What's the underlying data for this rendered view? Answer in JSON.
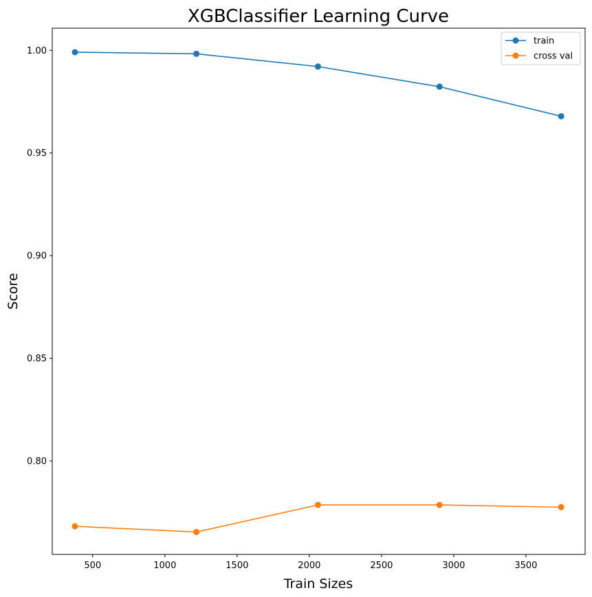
{
  "chart_data": {
    "type": "line",
    "title": "XGBClassifier Learning Curve",
    "xlabel": "Train Sizes",
    "ylabel": "Score",
    "xlim": [
      220,
      3910
    ],
    "ylim": [
      0.7545,
      1.0108
    ],
    "x_ticks": [
      500,
      1000,
      1500,
      2000,
      2500,
      3000,
      3500
    ],
    "x_tick_labels": [
      "500",
      "1000",
      "1500",
      "2000",
      "2500",
      "3000",
      "3500"
    ],
    "y_ticks": [
      0.8,
      0.85,
      0.9,
      0.95,
      1.0
    ],
    "y_tick_labels": [
      "0.80",
      "0.85",
      "0.90",
      "0.95",
      "1.00"
    ],
    "grid": false,
    "legend_position": "top-right",
    "x": [
      377,
      1218,
      2060,
      2902,
      3744
    ],
    "series": [
      {
        "name": "train",
        "color": "#1f77b4",
        "marker": "circle",
        "values": [
          0.9991,
          0.9983,
          0.9921,
          0.9823,
          0.9679
        ]
      },
      {
        "name": "cross val",
        "color": "#ff7f0e",
        "marker": "circle",
        "values": [
          0.7682,
          0.7654,
          0.7786,
          0.7786,
          0.7775
        ]
      }
    ]
  }
}
